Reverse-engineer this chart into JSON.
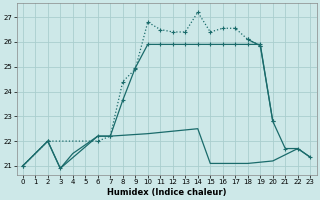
{
  "xlabel": "Humidex (Indice chaleur)",
  "bg_color": "#cde8e8",
  "grid_color": "#aacece",
  "line_color": "#1a6b6b",
  "xlim": [
    -0.5,
    23.5
  ],
  "ylim": [
    20.65,
    27.55
  ],
  "yticks": [
    21,
    22,
    23,
    24,
    25,
    26,
    27
  ],
  "xticks": [
    0,
    1,
    2,
    3,
    4,
    5,
    6,
    7,
    8,
    9,
    10,
    11,
    12,
    13,
    14,
    15,
    16,
    17,
    18,
    19,
    20,
    21,
    22,
    23
  ],
  "line1_x": [
    0,
    2,
    3,
    4,
    6,
    7,
    10,
    11,
    12,
    13,
    14,
    15,
    16,
    17,
    18,
    19,
    20,
    22,
    23
  ],
  "line1_y": [
    21.0,
    22.0,
    20.9,
    21.5,
    22.2,
    22.2,
    22.3,
    22.35,
    22.4,
    22.45,
    22.5,
    21.1,
    21.1,
    21.1,
    21.1,
    21.15,
    21.2,
    21.7,
    21.35
  ],
  "line2_x": [
    0,
    2,
    3,
    6,
    7,
    8,
    9,
    10,
    11,
    12,
    13,
    14,
    15,
    16,
    17,
    18,
    19,
    20
  ],
  "line2_y": [
    21.0,
    22.0,
    20.9,
    22.2,
    22.2,
    23.65,
    24.95,
    25.9,
    25.9,
    25.9,
    25.9,
    25.9,
    25.9,
    25.9,
    25.9,
    25.9,
    25.9,
    22.8
  ],
  "line3_x": [
    0,
    2,
    6,
    7,
    8,
    9,
    10,
    11,
    12,
    13,
    14,
    15,
    16,
    17,
    18,
    19
  ],
  "line3_y": [
    21.0,
    22.0,
    22.0,
    22.2,
    24.4,
    24.9,
    26.8,
    26.5,
    26.4,
    26.4,
    27.2,
    26.4,
    26.55,
    26.55,
    26.1,
    25.85
  ],
  "line4_x": [
    0,
    2,
    6,
    7,
    8,
    9,
    10,
    11,
    12,
    13,
    14,
    15,
    16,
    17,
    18,
    19,
    20,
    21,
    22,
    23
  ],
  "line4_y": [
    21.0,
    22.0,
    22.0,
    22.2,
    24.4,
    24.9,
    26.8,
    26.5,
    26.4,
    26.4,
    27.2,
    26.4,
    26.55,
    26.55,
    26.1,
    25.85,
    22.8,
    21.7,
    21.7,
    21.35
  ]
}
